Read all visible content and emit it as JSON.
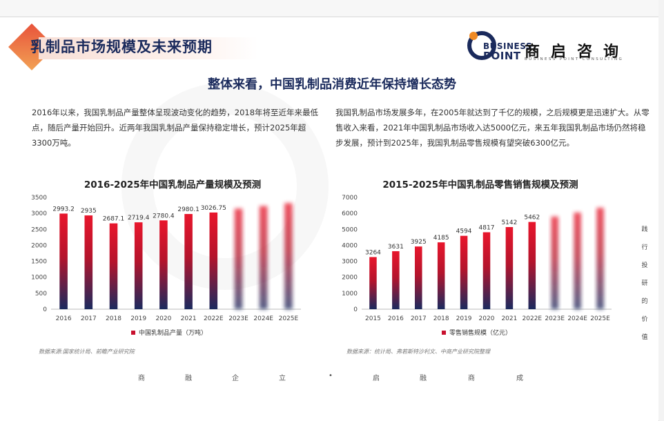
{
  "header": {
    "title": "乳制品市场规模及未来预期",
    "logo": {
      "en_line1": "BUSINESS",
      "en_line2": "POINT",
      "cn": "商启咨询",
      "sub": "BUSINESS POINT CONSULTING"
    }
  },
  "subtitle": "整体来看，中国乳制品消费近年保持增长态势",
  "paragraphs": {
    "left": "2016年以来，我国乳制品产量整体呈现波动变化的趋势，2018年将至近年来最低点，随后产量开始回升。近两年我国乳制品产量保持稳定增长，预计2025年超3300万吨。",
    "right": "我国乳制品市场发展多年，在2005年就达到了千亿的规模，之后规模更是迅速扩大。从零售收入来看，2021年中国乳制品市场收入达5000亿元，来五年我国乳制品市场仍然将稳步发展，预计到2025年，我国乳制品零售规模有望突破6300亿元。"
  },
  "sources": {
    "left": "数据来源:国家统计局、前瞻产业研究院",
    "right": "数据来源：统计局、弗若斯特沙利文、中商产业研究院整理"
  },
  "side_text": [
    "践",
    "行",
    "投",
    "研",
    "的",
    "价",
    "值"
  ],
  "bottom_slogan": [
    "商",
    "融",
    "企",
    "立",
    "•",
    "启",
    "融",
    "商",
    "成"
  ],
  "colors": {
    "bar_top": "#e8162c",
    "bar_bottom": "#1b2a5e",
    "title": "#1a2a5c",
    "accent": "#e8533b"
  },
  "chart_data": [
    {
      "type": "bar",
      "title": "2016-2025年中国乳制品产量规模及预测",
      "categories": [
        "2016",
        "2017",
        "2018",
        "2019",
        "2020",
        "2021",
        "2022E",
        "2023E",
        "2024E",
        "2025E"
      ],
      "series": [
        {
          "name": "中国乳制品产量（万吨）",
          "values": [
            2993.2,
            2935,
            2687.1,
            2719.4,
            2780.4,
            2980.1,
            3026.75,
            3150,
            3230,
            3320
          ]
        }
      ],
      "data_labels": [
        "2993.2",
        "2935",
        "2687.1",
        "2719.4",
        "2780.4",
        "2980.1",
        "3026.75",
        "",
        "",
        ""
      ],
      "blurred_from_index": 7,
      "ylim": [
        0,
        3500
      ],
      "yticks": [
        0,
        500,
        1000,
        1500,
        2000,
        2500,
        3000,
        3500
      ],
      "grid": false,
      "legend": "bottom"
    },
    {
      "type": "bar",
      "title": "2015-2025年中国乳制品零售销售规模及预测",
      "categories": [
        "2015",
        "2016",
        "2017",
        "2018",
        "2019",
        "2020",
        "2021",
        "2022E",
        "2023E",
        "2024E",
        "2025E"
      ],
      "series": [
        {
          "name": "零售销售规模（亿元）",
          "values": [
            3264,
            3631,
            3925,
            4185,
            4594,
            4817,
            5142,
            5462,
            5800,
            6050,
            6350
          ]
        }
      ],
      "data_labels": [
        "3264",
        "3631",
        "3925",
        "4185",
        "4594",
        "4817",
        "5142",
        "5462",
        "",
        "",
        ""
      ],
      "blurred_from_index": 8,
      "ylim": [
        0,
        7000
      ],
      "yticks": [
        0,
        1000,
        2000,
        3000,
        4000,
        5000,
        6000,
        7000
      ],
      "grid": false,
      "legend": "bottom"
    }
  ]
}
